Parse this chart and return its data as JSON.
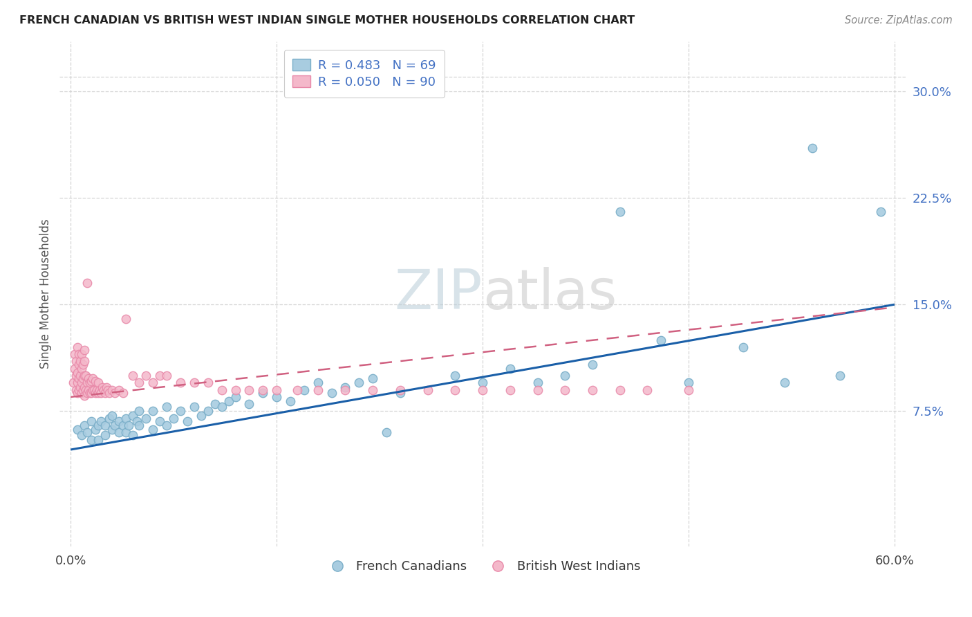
{
  "title": "FRENCH CANADIAN VS BRITISH WEST INDIAN SINGLE MOTHER HOUSEHOLDS CORRELATION CHART",
  "source": "Source: ZipAtlas.com",
  "ylabel": "Single Mother Households",
  "watermark_zip": "ZIP",
  "watermark_atlas": "atlas",
  "legend1_label": "R = 0.483   N = 69",
  "legend2_label": "R = 0.050   N = 90",
  "legend_bottom1": "French Canadians",
  "legend_bottom2": "British West Indians",
  "blue_scatter_color": "#a8cce0",
  "blue_scatter_edge": "#7aaec8",
  "pink_scatter_color": "#f4b8ca",
  "pink_scatter_edge": "#e888a8",
  "blue_line_color": "#1a5fa8",
  "pink_line_color": "#d06080",
  "ytick_color": "#4472c4",
  "title_color": "#222222",
  "ylabel_color": "#555555",
  "source_color": "#888888",
  "grid_color": "#cccccc",
  "x_min": 0.0,
  "x_max": 0.6,
  "y_min": -0.02,
  "y_max": 0.335,
  "ytick_values": [
    0.075,
    0.15,
    0.225,
    0.3
  ],
  "ytick_labels": [
    "7.5%",
    "15.0%",
    "22.5%",
    "30.0%"
  ],
  "xtick_values": [
    0.0,
    0.6
  ],
  "xtick_labels": [
    "0.0%",
    "60.0%"
  ],
  "blue_line_x0": 0.0,
  "blue_line_y0": 0.048,
  "blue_line_x1": 0.6,
  "blue_line_y1": 0.15,
  "pink_line_x0": 0.0,
  "pink_line_y0": 0.085,
  "pink_line_x1": 0.6,
  "pink_line_y1": 0.148,
  "blue_dots_x": [
    0.005,
    0.008,
    0.01,
    0.012,
    0.015,
    0.015,
    0.018,
    0.02,
    0.02,
    0.022,
    0.025,
    0.025,
    0.028,
    0.03,
    0.03,
    0.032,
    0.035,
    0.035,
    0.038,
    0.04,
    0.04,
    0.042,
    0.045,
    0.045,
    0.048,
    0.05,
    0.05,
    0.055,
    0.06,
    0.06,
    0.065,
    0.07,
    0.07,
    0.075,
    0.08,
    0.085,
    0.09,
    0.095,
    0.1,
    0.105,
    0.11,
    0.115,
    0.12,
    0.13,
    0.14,
    0.15,
    0.16,
    0.17,
    0.18,
    0.19,
    0.2,
    0.21,
    0.22,
    0.23,
    0.24,
    0.28,
    0.3,
    0.32,
    0.34,
    0.36,
    0.38,
    0.4,
    0.43,
    0.45,
    0.49,
    0.52,
    0.54,
    0.56,
    0.59
  ],
  "blue_dots_y": [
    0.062,
    0.058,
    0.065,
    0.06,
    0.068,
    0.055,
    0.062,
    0.065,
    0.055,
    0.068,
    0.065,
    0.058,
    0.07,
    0.062,
    0.072,
    0.065,
    0.068,
    0.06,
    0.065,
    0.07,
    0.06,
    0.065,
    0.072,
    0.058,
    0.068,
    0.065,
    0.075,
    0.07,
    0.075,
    0.062,
    0.068,
    0.078,
    0.065,
    0.07,
    0.075,
    0.068,
    0.078,
    0.072,
    0.075,
    0.08,
    0.078,
    0.082,
    0.085,
    0.08,
    0.088,
    0.085,
    0.082,
    0.09,
    0.095,
    0.088,
    0.092,
    0.095,
    0.098,
    0.06,
    0.088,
    0.1,
    0.095,
    0.105,
    0.095,
    0.1,
    0.108,
    0.215,
    0.125,
    0.095,
    0.12,
    0.095,
    0.26,
    0.1,
    0.215
  ],
  "pink_dots_x": [
    0.002,
    0.003,
    0.003,
    0.004,
    0.004,
    0.004,
    0.005,
    0.005,
    0.005,
    0.005,
    0.006,
    0.006,
    0.006,
    0.006,
    0.007,
    0.007,
    0.007,
    0.008,
    0.008,
    0.008,
    0.008,
    0.009,
    0.009,
    0.009,
    0.01,
    0.01,
    0.01,
    0.01,
    0.01,
    0.011,
    0.011,
    0.012,
    0.012,
    0.012,
    0.013,
    0.013,
    0.014,
    0.014,
    0.015,
    0.015,
    0.016,
    0.016,
    0.017,
    0.018,
    0.018,
    0.019,
    0.02,
    0.02,
    0.021,
    0.022,
    0.023,
    0.024,
    0.025,
    0.026,
    0.027,
    0.028,
    0.03,
    0.032,
    0.035,
    0.038,
    0.04,
    0.045,
    0.05,
    0.055,
    0.06,
    0.065,
    0.07,
    0.08,
    0.09,
    0.1,
    0.11,
    0.12,
    0.13,
    0.14,
    0.15,
    0.165,
    0.18,
    0.2,
    0.22,
    0.24,
    0.26,
    0.28,
    0.3,
    0.32,
    0.34,
    0.36,
    0.38,
    0.4,
    0.42,
    0.45
  ],
  "pink_dots_y": [
    0.095,
    0.105,
    0.115,
    0.09,
    0.1,
    0.11,
    0.088,
    0.095,
    0.102,
    0.12,
    0.09,
    0.098,
    0.108,
    0.115,
    0.092,
    0.1,
    0.11,
    0.088,
    0.095,
    0.105,
    0.115,
    0.09,
    0.098,
    0.108,
    0.086,
    0.092,
    0.1,
    0.11,
    0.118,
    0.09,
    0.1,
    0.088,
    0.095,
    0.165,
    0.09,
    0.098,
    0.088,
    0.095,
    0.088,
    0.096,
    0.09,
    0.098,
    0.09,
    0.088,
    0.096,
    0.09,
    0.088,
    0.095,
    0.09,
    0.088,
    0.092,
    0.09,
    0.088,
    0.092,
    0.09,
    0.088,
    0.09,
    0.088,
    0.09,
    0.088,
    0.14,
    0.1,
    0.095,
    0.1,
    0.095,
    0.1,
    0.1,
    0.095,
    0.095,
    0.095,
    0.09,
    0.09,
    0.09,
    0.09,
    0.09,
    0.09,
    0.09,
    0.09,
    0.09,
    0.09,
    0.09,
    0.09,
    0.09,
    0.09,
    0.09,
    0.09,
    0.09,
    0.09,
    0.09,
    0.09
  ]
}
